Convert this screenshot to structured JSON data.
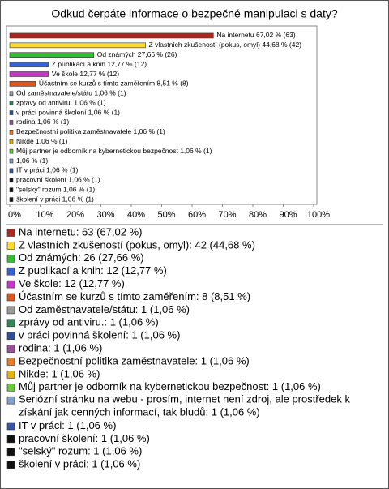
{
  "chart_data": {
    "type": "bar",
    "orientation": "horizontal",
    "title": "Odkud čerpáte informace o bezpečné manipulaci s daty?",
    "categories": [
      "Na internetu: 63 (67,02 %)",
      "Z vlastních zkušeností (pokus, omyl): 42 (44,68 %)",
      "Od známých: 26 (27,66 %)",
      "Z publikací a knih: 12 (12,77 %)",
      "Ve škole: 12 (12,77 %)",
      "Účastním se kurzů s tímto zaměřením: 8 (8,51 %)",
      "Od zaměstnavatele/státu: 1 (1,06 %)",
      "zprávy od antiviru.: 1 (1,06 %)",
      "v práci povinná školení: 1 (1,06 %)",
      "rodina: 1 (1,06 %)",
      "Bezpečnostní politika zaměstnavatele: 1 (1,06 %)",
      "Nikde: 1 (1,06 %)",
      "Můj partner je odborník na kybernetickou bezpečnost: 1 (1,06 %)",
      "Seriózní stránku na webu - prosím, internet není zdroj, ale prostředek k získání jak cenných informací, tak bludů: 1 (1,06 %)",
      "IT v práci: 1 (1,06 %)",
      "pracovní školení: 1 (1,06 %)",
      "\"selský\" rozum: 1 (1,06 %)",
      "školení v práci: 1 (1,06 %)"
    ],
    "values": [
      67.02,
      44.68,
      27.66,
      12.77,
      12.77,
      8.51,
      1.06,
      1.06,
      1.06,
      1.06,
      1.06,
      1.06,
      1.06,
      1.06,
      1.06,
      1.06,
      1.06,
      1.06
    ],
    "value_labels": [
      "Na internetu 67,02 % (63)",
      "Z vlastních zkušeností (pokus, omyl) 44,68 % (42)",
      "Od známých 27,66 % (26)",
      "Z publikací a knih 12,77 % (12)",
      "Ve škole 12,77 % (12)",
      "Účastním se kurzů s tímto zaměřením 8,51 % (8)",
      "Od zaměstnavatele/státu 1,06 % (1)",
      "zprávy od antiviru. 1,06 % (1)",
      "v práci povinná školení 1,06 % (1)",
      "rodina 1,06 % (1)",
      "Bezpečnostní politika zaměstnavatele 1,06 % (1)",
      "Nikde 1,06 % (1)",
      "Můj partner je odborník na kybernetickou bezpečnost 1,06 % (1)",
      "1,06 % (1)",
      "IT v práci 1,06 % (1)",
      "pracovní školení 1,06 % (1)",
      "\"selský\" rozum 1,06 % (1)",
      "školení v práci 1,06 % (1)"
    ],
    "colors": [
      "#b3261e",
      "#ffd92e",
      "#2fbf2f",
      "#3a5fd6",
      "#cc33cc",
      "#e0541a",
      "#9a9a9a",
      "#2e8b57",
      "#2f4fa0",
      "#9b4f9b",
      "#ee7a22",
      "#e3b400",
      "#66cc33",
      "#7f9fd0",
      "#3355aa",
      "#111111",
      "#111111",
      "#111111"
    ],
    "xlim": [
      0,
      100
    ],
    "xticks": [
      {
        "value": 0,
        "label": "0%"
      },
      {
        "value": 10,
        "label": "10%"
      },
      {
        "value": 20,
        "label": "20%"
      },
      {
        "value": 30,
        "label": "30%"
      },
      {
        "value": 40,
        "label": "40%"
      },
      {
        "value": 50,
        "label": "50%"
      },
      {
        "value": 60,
        "label": "60%"
      },
      {
        "value": 70,
        "label": "70%"
      },
      {
        "value": 80,
        "label": "80%"
      },
      {
        "value": 90,
        "label": "90%"
      },
      {
        "value": 100,
        "label": "100%"
      }
    ],
    "grid": false
  }
}
